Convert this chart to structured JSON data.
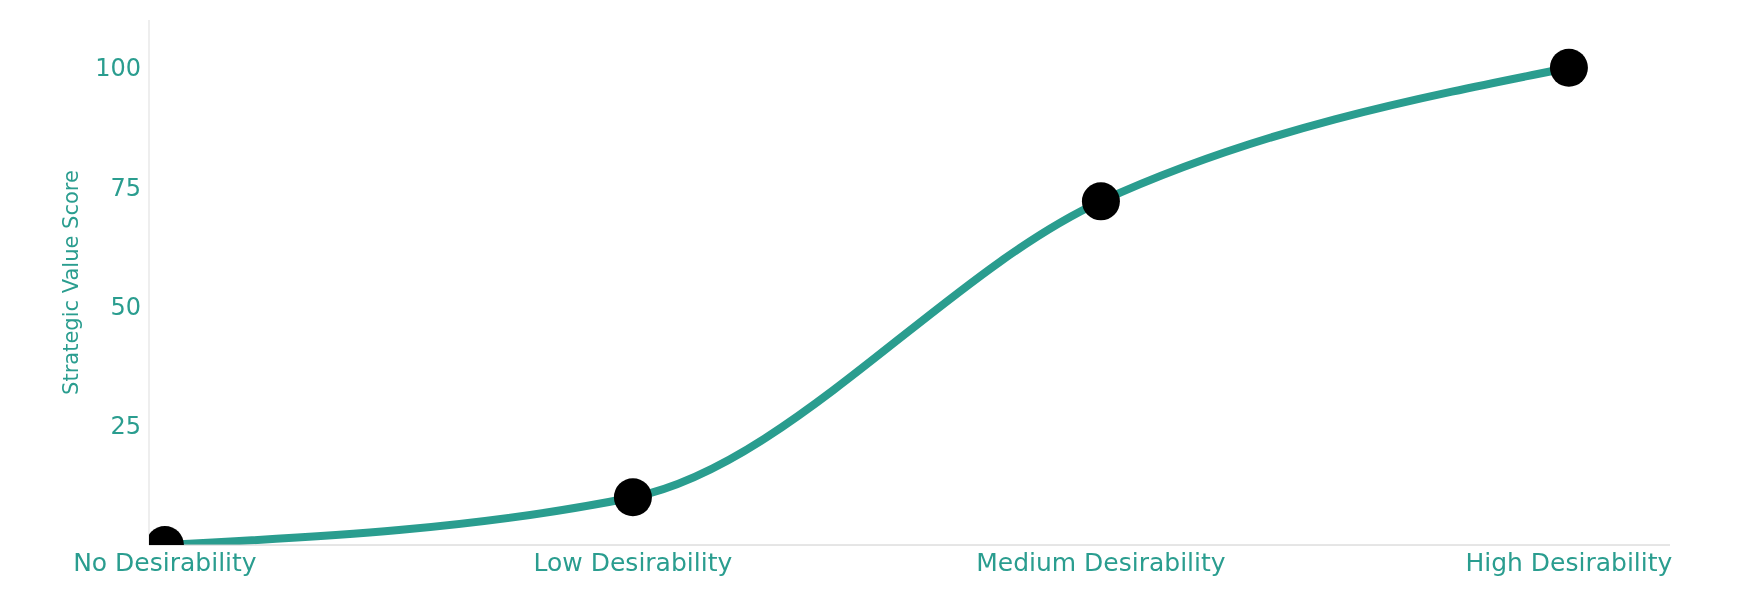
{
  "chart_data": {
    "type": "line",
    "ylabel": "Strategic Value Score",
    "categories": [
      "No Desirability",
      "Low Desirability",
      "Medium Desirability",
      "High Desirability"
    ],
    "series": [
      {
        "color": "#2a9d8f",
        "values": [
          0,
          10,
          72,
          100
        ]
      }
    ],
    "ylim": [
      0,
      110
    ],
    "yticks": [
      25,
      50,
      75,
      100
    ],
    "grid": false,
    "legend": false,
    "marker": "circle",
    "line_style": "solid"
  }
}
